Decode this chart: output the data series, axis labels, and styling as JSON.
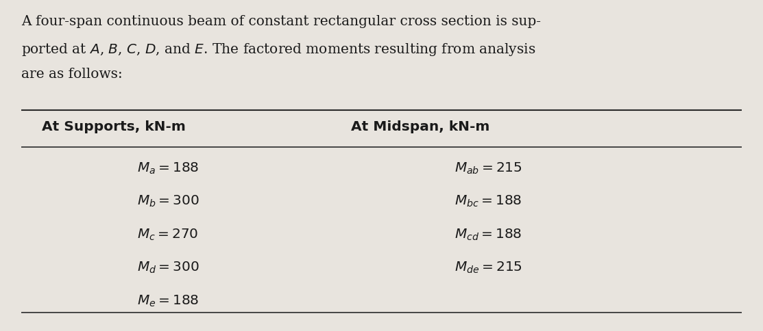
{
  "bg_top": "#e8e4de",
  "bg_bottom": "#c8c0b8",
  "text_color": "#1a1a1a",
  "line_color": "#2a2a2a",
  "para_line1": "A four-span continuous beam of constant rectangular cross section is sup-",
  "para_line2": "ported at $A$, $B$, $C$, $D$, and $E$. The factored moments resulting from analysis",
  "para_line3": "are as follows:",
  "col1_header": "At Supports, kN-m",
  "col2_header": "At Midspan, kN-m",
  "col1_items": [
    "$M_a = 188$",
    "$M_b = 300$",
    "$M_c = 270$",
    "$M_d = 300$",
    "$M_e = 188$"
  ],
  "col2_items": [
    "$M_{ab} = 215$",
    "$M_{bc} = 188$",
    "$M_{cd} = 188$",
    "$M_{de} = 215$"
  ],
  "font_size_para": 14.5,
  "font_size_header": 14.5,
  "font_size_data": 14.5
}
